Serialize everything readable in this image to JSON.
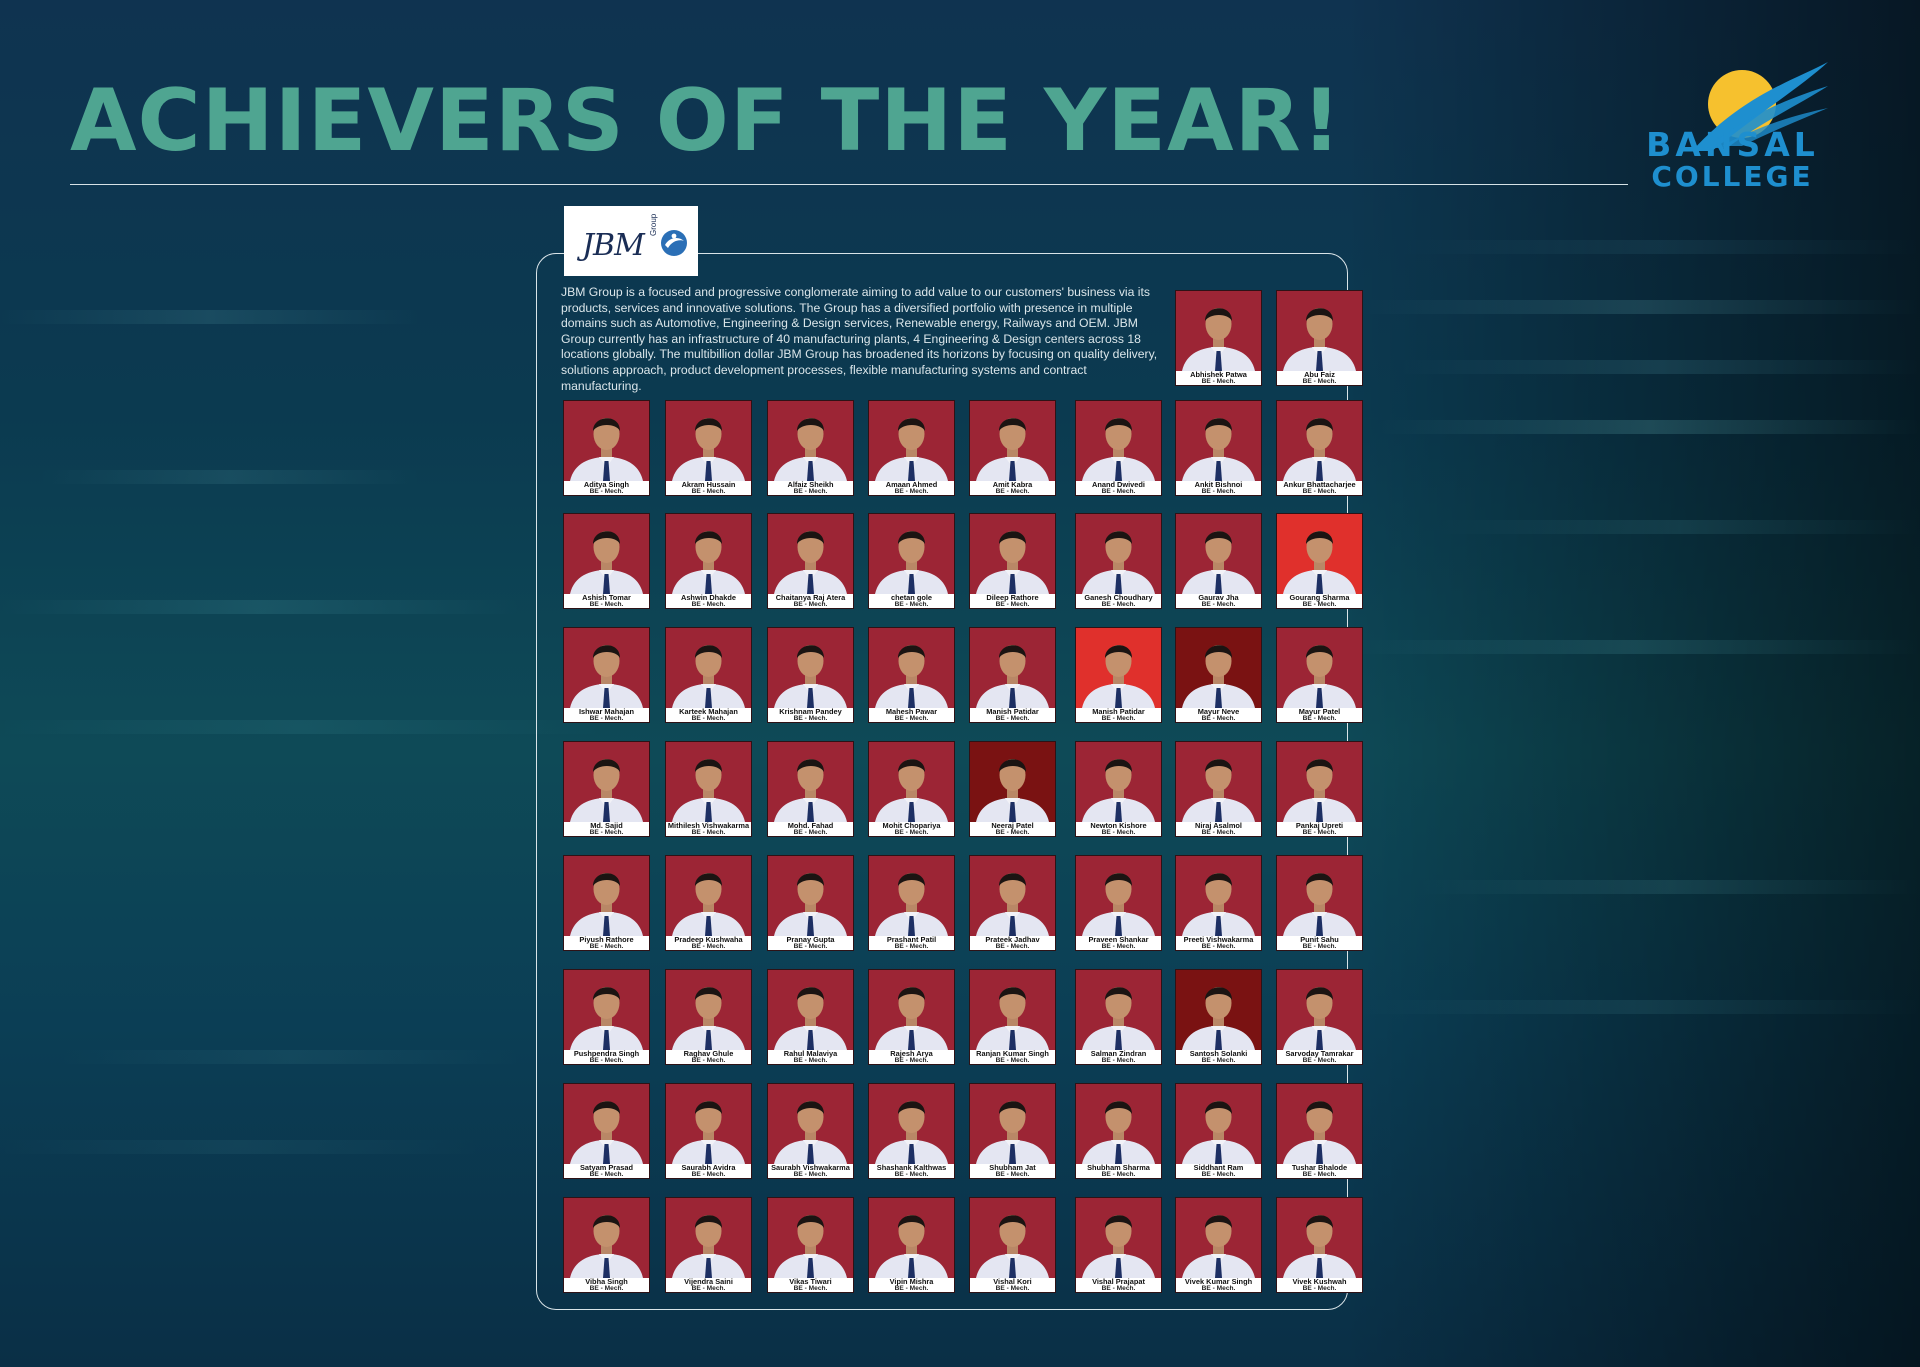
{
  "header": {
    "title": "ACHIEVERS OF THE YEAR!",
    "college_logo": {
      "line1": "BANSAL",
      "line2": "COLLEGE",
      "colors": {
        "sun": "#f6c12e",
        "wing": "#1e8fcf"
      }
    }
  },
  "company": {
    "logo_text": "JBM",
    "logo_subtext": "Group",
    "description": "JBM Group is a focused and progressive conglomerate aiming to add value to our customers' business via its products, services and innovative solutions. The Group has a diversified portfolio with presence in multiple domains such as Automotive, Engineering & Design services, Renewable energy, Railways and OEM. JBM Group currently has an infrastructure of 40 manufacturing plants, 4 Engineering & Design centers across 18 locations globally. The multibillion dollar JBM Group has broadened its horizons by focusing on quality delivery, solutions approach, product development processes, flexible manufacturing systems and contract manufacturing."
  },
  "colors": {
    "title": "#4fa591",
    "photo_background": "#9c2535",
    "photo_background_bright": "#e0302c",
    "photo_background_dark": "#7a1212"
  },
  "achievers": [
    {
      "name": "Abhishek Patwa",
      "degree": "BE - Mech."
    },
    {
      "name": "Abu Faiz",
      "degree": "BE - Mech."
    },
    {
      "name": "Aditya Singh",
      "degree": "BE - Mech."
    },
    {
      "name": "Akram Hussain",
      "degree": "BE - Mech."
    },
    {
      "name": "Alfaiz Sheikh",
      "degree": "BE - Mech."
    },
    {
      "name": "Amaan Ahmed",
      "degree": "BE - Mech."
    },
    {
      "name": "Amit Kabra",
      "degree": "BE - Mech."
    },
    {
      "name": "Anand Dwivedi",
      "degree": "BE - Mech."
    },
    {
      "name": "Ankit Bishnoi",
      "degree": "BE - Mech."
    },
    {
      "name": "Ankur Bhattacharjee",
      "degree": "BE - Mech."
    },
    {
      "name": "Ashish Tomar",
      "degree": "BE - Mech."
    },
    {
      "name": "Ashwin Dhakde",
      "degree": "BE - Mech."
    },
    {
      "name": "Chaitanya Raj Atera",
      "degree": "BE - Mech."
    },
    {
      "name": "chetan gole",
      "degree": "BE - Mech."
    },
    {
      "name": "Dileep Rathore",
      "degree": "BE - Mech."
    },
    {
      "name": "Ganesh Choudhary",
      "degree": "BE - Mech."
    },
    {
      "name": "Gaurav Jha",
      "degree": "BE - Mech."
    },
    {
      "name": "Gourang Sharma",
      "degree": "BE - Mech."
    },
    {
      "name": "Ishwar Mahajan",
      "degree": "BE - Mech."
    },
    {
      "name": "Karteek Mahajan",
      "degree": "BE - Mech."
    },
    {
      "name": "Krishnam Pandey",
      "degree": "BE - Mech."
    },
    {
      "name": "Mahesh Pawar",
      "degree": "BE - Mech."
    },
    {
      "name": "Manish Patidar",
      "degree": "BE - Mech."
    },
    {
      "name": "Manish Patidar",
      "degree": "BE - Mech."
    },
    {
      "name": "Mayur Neve",
      "degree": "BE - Mech."
    },
    {
      "name": "Mayur Patel",
      "degree": "BE - Mech."
    },
    {
      "name": "Md. Sajid",
      "degree": "BE - Mech."
    },
    {
      "name": "Mithilesh Vishwakarma",
      "degree": "BE - Mech."
    },
    {
      "name": "Mohd. Fahad",
      "degree": "BE - Mech."
    },
    {
      "name": "Mohit Chopariya",
      "degree": "BE - Mech."
    },
    {
      "name": "Neeraj Patel",
      "degree": "BE - Mech."
    },
    {
      "name": "Newton Kishore",
      "degree": "BE - Mech."
    },
    {
      "name": "Niraj Asalmol",
      "degree": "BE - Mech."
    },
    {
      "name": "Pankaj Upreti",
      "degree": "BE - Mech."
    },
    {
      "name": "Piyush Rathore",
      "degree": "BE - Mech."
    },
    {
      "name": "Pradeep Kushwaha",
      "degree": "BE - Mech."
    },
    {
      "name": "Pranay Gupta",
      "degree": "BE - Mech."
    },
    {
      "name": "Prashant Patil",
      "degree": "BE - Mech."
    },
    {
      "name": "Prateek Jadhav",
      "degree": "BE - Mech."
    },
    {
      "name": "Praveen Shankar",
      "degree": "BE - Mech."
    },
    {
      "name": "Preeti Vishwakarma",
      "degree": "BE - Mech."
    },
    {
      "name": "Punit Sahu",
      "degree": "BE - Mech."
    },
    {
      "name": "Pushpendra Singh",
      "degree": "BE - Mech."
    },
    {
      "name": "Raghav Ghule",
      "degree": "BE - Mech."
    },
    {
      "name": "Rahul Malaviya",
      "degree": "BE - Mech."
    },
    {
      "name": "Rajesh Arya",
      "degree": "BE - Mech."
    },
    {
      "name": "Ranjan Kumar Singh",
      "degree": "BE - Mech."
    },
    {
      "name": "Salman Zindran",
      "degree": "BE - Mech."
    },
    {
      "name": "Santosh Solanki",
      "degree": "BE - Mech."
    },
    {
      "name": "Sarvoday Tamrakar",
      "degree": "BE - Mech."
    },
    {
      "name": "Satyam Prasad",
      "degree": "BE - Mech."
    },
    {
      "name": "Saurabh Avidra",
      "degree": "BE - Mech."
    },
    {
      "name": "Saurabh Vishwakarma",
      "degree": "BE - Mech."
    },
    {
      "name": "Shashank Kalthwas",
      "degree": "BE - Mech."
    },
    {
      "name": "Shubham Jat",
      "degree": "BE - Mech."
    },
    {
      "name": "Shubham Sharma",
      "degree": "BE - Mech."
    },
    {
      "name": "Siddhant Ram",
      "degree": "BE - Mech."
    },
    {
      "name": "Tushar Bhalode",
      "degree": "BE - Mech."
    },
    {
      "name": "Vibha Singh",
      "degree": "BE - Mech."
    },
    {
      "name": "Vijendra Saini",
      "degree": "BE - Mech."
    },
    {
      "name": "Vikas Tiwari",
      "degree": "BE - Mech."
    },
    {
      "name": "Vipin Mishra",
      "degree": "BE - Mech."
    },
    {
      "name": "Vishal Kori",
      "degree": "BE - Mech."
    },
    {
      "name": "Vishal Prajapat",
      "degree": "BE - Mech."
    },
    {
      "name": "Vivek Kumar Singh",
      "degree": "BE - Mech."
    },
    {
      "name": "Vivek Kushwah",
      "degree": "BE - Mech."
    }
  ]
}
